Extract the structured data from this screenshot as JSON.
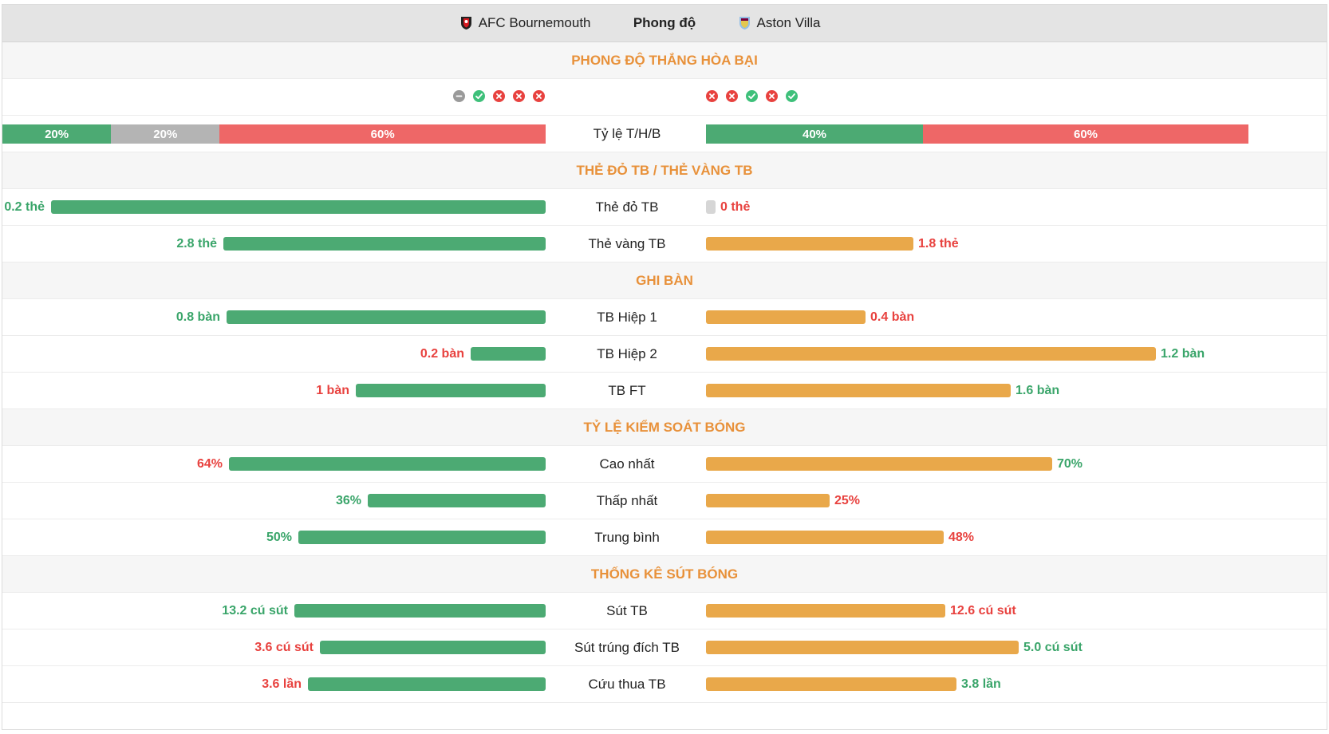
{
  "header": {
    "home_team": "AFC Bournemouth",
    "title": "Phong độ",
    "away_team": "Aston Villa"
  },
  "sections": {
    "form": "PHONG ĐỘ THẮNG HÒA BẠI",
    "cards": "THẺ ĐỎ TB / THẺ VÀNG TB",
    "goals": "GHI BÀN",
    "possession": "TỶ LỆ KIỂM SOÁT BÓNG",
    "shots": "THỐNG KÊ SÚT BÓNG"
  },
  "form": {
    "home": [
      "draw",
      "win",
      "loss",
      "loss",
      "loss"
    ],
    "away": [
      "loss",
      "loss",
      "win",
      "loss",
      "win"
    ]
  },
  "ratio": {
    "label": "Tỷ lệ T/H/B",
    "home": [
      {
        "label": "20%",
        "value": 20,
        "kind": "win"
      },
      {
        "label": "20%",
        "value": 20,
        "kind": "draw"
      },
      {
        "label": "60%",
        "value": 60,
        "kind": "loss"
      }
    ],
    "away": [
      {
        "label": "40%",
        "value": 40,
        "kind": "win"
      },
      {
        "label": "60%",
        "value": 60,
        "kind": "loss"
      }
    ]
  },
  "stats": {
    "red_cards": {
      "label": "Thẻ đỏ TB",
      "home": "0.2 thẻ",
      "home_value": 0.2,
      "home_color": "green",
      "away": "0 thẻ",
      "away_value": 0,
      "away_color": "red",
      "scale": 0.2
    },
    "yellow_cards": {
      "label": "Thẻ vàng TB",
      "home": "2.8 thẻ",
      "home_value": 2.8,
      "home_color": "green",
      "away": "1.8 thẻ",
      "away_value": 1.8,
      "away_color": "red",
      "scale": 4.3
    },
    "goals_h1": {
      "label": "TB Hiệp 1",
      "home": "0.8 bàn",
      "home_value": 0.8,
      "home_color": "green",
      "away": "0.4 bàn",
      "away_value": 0.4,
      "away_color": "red",
      "scale": 1.24
    },
    "goals_h2": {
      "label": "TB Hiệp 2",
      "home": "0.2 bàn",
      "home_value": 0.2,
      "home_color": "red",
      "away": "1.2 bàn",
      "away_value": 1.2,
      "away_color": "green",
      "scale": 1.32
    },
    "goals_ft": {
      "label": "TB FT",
      "home": "1 bàn",
      "home_value": 1,
      "home_color": "red",
      "away": "1.6 bàn",
      "away_value": 1.6,
      "away_color": "green",
      "scale": 2.6
    },
    "poss_max": {
      "label": "Cao nhất",
      "home": "64%",
      "home_value": 64,
      "home_color": "red",
      "away": "70%",
      "away_value": 70,
      "away_color": "green",
      "scale": 100
    },
    "poss_min": {
      "label": "Thấp nhất",
      "home": "36%",
      "home_value": 36,
      "home_color": "green",
      "away": "25%",
      "away_value": 25,
      "away_color": "red",
      "scale": 100
    },
    "poss_avg": {
      "label": "Trung bình",
      "home": "50%",
      "home_value": 50,
      "home_color": "green",
      "away": "48%",
      "away_value": 48,
      "away_color": "red",
      "scale": 100
    },
    "shots": {
      "label": "Sút TB",
      "home": "13.2 cú sút",
      "home_value": 13.2,
      "home_color": "green",
      "away": "12.6 cú sút",
      "away_value": 12.6,
      "away_color": "red",
      "scale": 26
    },
    "shots_on": {
      "label": "Sút trúng đích TB",
      "home": "3.6 cú sút",
      "home_value": 3.6,
      "home_color": "red",
      "away": "5.0 cú sút",
      "away_value": 5.0,
      "away_color": "green",
      "scale": 7.9
    },
    "saves": {
      "label": "Cứu thua TB",
      "home": "3.6 lần",
      "home_value": 3.6,
      "home_color": "red",
      "away": "3.8 lần",
      "away_value": 3.8,
      "away_color": "green",
      "scale": 7.5
    }
  },
  "colors": {
    "accent": "#e8913a",
    "home_bar": "#4caa73",
    "away_bar": "#e9a84a",
    "win": "#3ec07a",
    "loss": "#e8423f",
    "draw": "#9a9a9a",
    "ratio_win": "#4caa73",
    "ratio_draw": "#b4b4b4",
    "ratio_loss": "#ee6767"
  }
}
